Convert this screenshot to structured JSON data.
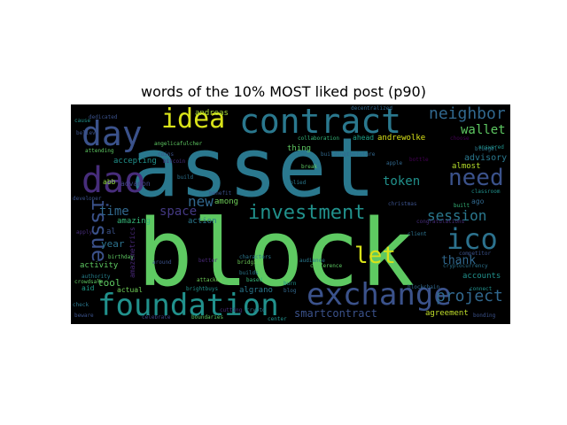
{
  "figure": {
    "title": "words of the 10% MOST liked post (p90)"
  },
  "words": [
    {
      "text": "asset",
      "color": "#2a788e"
    },
    {
      "text": "block",
      "color": "#5ec962"
    },
    {
      "text": "contract",
      "color": "#2a788e"
    },
    {
      "text": "exchange",
      "color": "#3b528b"
    },
    {
      "text": "foundation",
      "color": "#21918c"
    },
    {
      "text": "day",
      "color": "#3b528b"
    },
    {
      "text": "dao",
      "color": "#472d7b"
    },
    {
      "text": "idea",
      "color": "#d8e219"
    },
    {
      "text": "investment",
      "color": "#21918c"
    },
    {
      "text": "ico",
      "color": "#2c728e"
    },
    {
      "text": "need",
      "color": "#3b528b"
    },
    {
      "text": "neighbor",
      "color": "#31688e"
    },
    {
      "text": "issue",
      "color": "#3b528b"
    },
    {
      "text": "let",
      "color": "#d8e219"
    },
    {
      "text": "project",
      "color": "#31688e"
    },
    {
      "text": "session",
      "color": "#2a788e"
    },
    {
      "text": "token",
      "color": "#21918c"
    },
    {
      "text": "wallet",
      "color": "#5ec962"
    },
    {
      "text": "new",
      "color": "#31688e"
    },
    {
      "text": "time",
      "color": "#31688e"
    },
    {
      "text": "space",
      "color": "#443983"
    },
    {
      "text": "thank",
      "color": "#31688e"
    },
    {
      "text": "smartcontract",
      "color": "#3b528b"
    },
    {
      "text": "agreement",
      "color": "#c0de2a"
    },
    {
      "text": "andreas",
      "color": "#a8db34"
    },
    {
      "text": "andrewolke",
      "color": "#d8e219"
    },
    {
      "text": "advisory",
      "color": "#2a788e"
    },
    {
      "text": "tool",
      "color": "#5ec962"
    },
    {
      "text": "year",
      "color": "#2c728e"
    },
    {
      "text": "activity",
      "color": "#5ec962"
    },
    {
      "text": "accounts",
      "color": "#21918c"
    },
    {
      "text": "amazing",
      "color": "#35b779"
    },
    {
      "text": "among",
      "color": "#6ece58"
    },
    {
      "text": "action",
      "color": "#2a788e"
    },
    {
      "text": "amazemetrics",
      "color": "#482878"
    },
    {
      "text": "almost",
      "color": "#b5de2b"
    },
    {
      "text": "accepting",
      "color": "#21918c"
    },
    {
      "text": "advanon",
      "color": "#414487"
    },
    {
      "text": "actual",
      "color": "#6ece58"
    },
    {
      "text": "aid",
      "color": "#1f9e89"
    },
    {
      "text": "algrano",
      "color": "#2a788e"
    },
    {
      "text": "abb",
      "color": "#90d743"
    },
    {
      "text": "ahead",
      "color": "#1fa187"
    },
    {
      "text": "ago",
      "color": "#31688e"
    },
    {
      "text": "thing",
      "color": "#5ec962"
    },
    {
      "text": "al",
      "color": "#3b528b"
    },
    {
      "text": "bitcoin",
      "color": "#472d7b"
    },
    {
      "text": "collaboration",
      "color": "#35b779"
    },
    {
      "text": "brightbuys",
      "color": "#21918c"
    },
    {
      "text": "attacked",
      "color": "#6ece58"
    },
    {
      "text": "christmas",
      "color": "#3b528b"
    },
    {
      "text": "applied",
      "color": "#2a788e"
    },
    {
      "text": "build",
      "color": "#2c728e"
    },
    {
      "text": "built",
      "color": "#35b779"
    },
    {
      "text": "bottle",
      "color": "#440154"
    },
    {
      "text": "around",
      "color": "#3b528b"
    },
    {
      "text": "better",
      "color": "#482878"
    },
    {
      "text": "based",
      "color": "#35b779"
    },
    {
      "text": "birthday",
      "color": "#5ec962"
    },
    {
      "text": "beware",
      "color": "#3b528b"
    },
    {
      "text": "bridging",
      "color": "#6ece58"
    },
    {
      "text": "authority",
      "color": "#26828e"
    },
    {
      "text": "attending",
      "color": "#5ec962"
    },
    {
      "text": "characters",
      "color": "#2a788e"
    },
    {
      "text": "burn",
      "color": "#21918c"
    },
    {
      "text": "blog",
      "color": "#31688e"
    },
    {
      "text": "celebrate",
      "color": "#414487"
    },
    {
      "text": "boundaries",
      "color": "#5ec962"
    },
    {
      "text": "bonding",
      "color": "#3b528b"
    },
    {
      "text": "check",
      "color": "#2a788e"
    },
    {
      "text": "classroom",
      "color": "#21918c"
    },
    {
      "text": "competitor",
      "color": "#3b528b"
    },
    {
      "text": "choose",
      "color": "#440154"
    },
    {
      "text": "blockchain",
      "color": "#31688e"
    },
    {
      "text": "congratulations",
      "color": "#472d7b"
    },
    {
      "text": "angelicafulcher",
      "color": "#5ec962"
    },
    {
      "text": "bluegel",
      "color": "#2a788e"
    },
    {
      "text": "center",
      "color": "#21918c"
    },
    {
      "text": "coins",
      "color": "#3b528b"
    },
    {
      "text": "builds",
      "color": "#2a788e"
    },
    {
      "text": "buildingthefuture",
      "color": "#31688e"
    },
    {
      "text": "believe",
      "color": "#3b528b"
    },
    {
      "text": "cryptocurrency",
      "color": "#2c728e"
    },
    {
      "text": "crowdsale",
      "color": "#5ec962"
    },
    {
      "text": "cause",
      "color": "#21918c"
    },
    {
      "text": "cutting",
      "color": "#472d7b"
    },
    {
      "text": "crypto",
      "color": "#2a788e"
    },
    {
      "text": "developer",
      "color": "#3b528b"
    },
    {
      "text": "answered",
      "color": "#21918c"
    },
    {
      "text": "conference",
      "color": "#5ec962"
    },
    {
      "text": "apple",
      "color": "#31688e"
    },
    {
      "text": "apply",
      "color": "#472d7b"
    },
    {
      "text": "audience",
      "color": "#2a788e"
    },
    {
      "text": "benefit",
      "color": "#3b528b"
    },
    {
      "text": "break",
      "color": "#5ec962"
    },
    {
      "text": "client",
      "color": "#2c728e"
    },
    {
      "text": "connect",
      "color": "#21918c"
    },
    {
      "text": "dedicated",
      "color": "#3b528b"
    },
    {
      "text": "decentralized",
      "color": "#31688e"
    }
  ]
}
